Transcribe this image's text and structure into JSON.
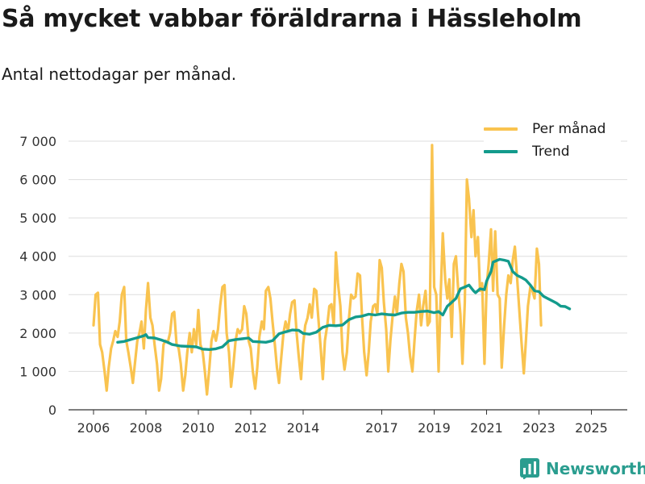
{
  "title": "Så mycket vabbar föräldrarna i Hässleholm",
  "subtitle": "Antal nettodagar per månad.",
  "brand": "Newsworthy",
  "colors": {
    "monthly": "#f9c34f",
    "trend": "#139b8c",
    "grid": "#dddddd",
    "axis": "#333333",
    "brand": "#2a9d8f"
  },
  "chart_data": {
    "type": "line",
    "title": "Så mycket vabbar föräldrarna i Hässleholm",
    "subtitle": "Antal nettodagar per månad.",
    "xlabel": "",
    "ylabel": "",
    "x_unit": "year",
    "xlim": [
      2006,
      2025.6
    ],
    "ylim": [
      0,
      7000
    ],
    "yticks": [
      0,
      1000,
      2000,
      3000,
      4000,
      5000,
      6000,
      7000
    ],
    "ytick_labels": [
      "0",
      "1 000",
      "2 000",
      "3 000",
      "4 000",
      "5 000",
      "6 000",
      "7 000"
    ],
    "xticks": [
      2006,
      2008,
      2010,
      2012,
      2014,
      2017,
      2019,
      2021,
      2023,
      2025
    ],
    "xtick_labels": [
      "2006",
      "2008",
      "2010",
      "2012",
      "2014",
      "2017",
      "2019",
      "2021",
      "2023",
      "2025"
    ],
    "legend_position": "top-right",
    "grid": true,
    "series": [
      {
        "name": "Per månad",
        "points": [
          [
            2006.0,
            2200
          ],
          [
            2006.08,
            3000
          ],
          [
            2006.17,
            3050
          ],
          [
            2006.25,
            1700
          ],
          [
            2006.33,
            1500
          ],
          [
            2006.42,
            1000
          ],
          [
            2006.5,
            500
          ],
          [
            2006.58,
            1100
          ],
          [
            2006.67,
            1600
          ],
          [
            2006.75,
            1800
          ],
          [
            2006.83,
            2050
          ],
          [
            2006.92,
            1900
          ],
          [
            2007.0,
            2300
          ],
          [
            2007.08,
            3000
          ],
          [
            2007.17,
            3200
          ],
          [
            2007.25,
            1800
          ],
          [
            2007.33,
            1500
          ],
          [
            2007.42,
            1100
          ],
          [
            2007.5,
            700
          ],
          [
            2007.58,
            1200
          ],
          [
            2007.67,
            1800
          ],
          [
            2007.75,
            2000
          ],
          [
            2007.83,
            2300
          ],
          [
            2007.92,
            1600
          ],
          [
            2008.0,
            2600
          ],
          [
            2008.08,
            3300
          ],
          [
            2008.17,
            2400
          ],
          [
            2008.25,
            2200
          ],
          [
            2008.33,
            1700
          ],
          [
            2008.42,
            1200
          ],
          [
            2008.5,
            500
          ],
          [
            2008.58,
            800
          ],
          [
            2008.67,
            1700
          ],
          [
            2008.75,
            1800
          ],
          [
            2008.83,
            1750
          ],
          [
            2008.92,
            2000
          ],
          [
            2009.0,
            2500
          ],
          [
            2009.08,
            2550
          ],
          [
            2009.17,
            1700
          ],
          [
            2009.25,
            1600
          ],
          [
            2009.33,
            1200
          ],
          [
            2009.42,
            500
          ],
          [
            2009.5,
            900
          ],
          [
            2009.58,
            1500
          ],
          [
            2009.67,
            2000
          ],
          [
            2009.75,
            1500
          ],
          [
            2009.83,
            2100
          ],
          [
            2009.92,
            1700
          ],
          [
            2010.0,
            2600
          ],
          [
            2010.08,
            1700
          ],
          [
            2010.17,
            1500
          ],
          [
            2010.25,
            1000
          ],
          [
            2010.33,
            400
          ],
          [
            2010.42,
            1100
          ],
          [
            2010.5,
            1800
          ],
          [
            2010.58,
            2050
          ],
          [
            2010.67,
            1800
          ],
          [
            2010.75,
            2100
          ],
          [
            2010.83,
            2700
          ],
          [
            2010.92,
            3200
          ],
          [
            2011.0,
            3250
          ],
          [
            2011.08,
            2000
          ],
          [
            2011.17,
            1500
          ],
          [
            2011.25,
            600
          ],
          [
            2011.33,
            1100
          ],
          [
            2011.42,
            1800
          ],
          [
            2011.5,
            2100
          ],
          [
            2011.58,
            2000
          ],
          [
            2011.67,
            2100
          ],
          [
            2011.75,
            2700
          ],
          [
            2011.83,
            2500
          ],
          [
            2011.92,
            1800
          ],
          [
            2012.0,
            1600
          ],
          [
            2012.08,
            1000
          ],
          [
            2012.17,
            550
          ],
          [
            2012.25,
            1100
          ],
          [
            2012.33,
            1900
          ],
          [
            2012.42,
            2300
          ],
          [
            2012.5,
            2100
          ],
          [
            2012.58,
            3100
          ],
          [
            2012.67,
            3200
          ],
          [
            2012.75,
            2900
          ],
          [
            2012.83,
            2300
          ],
          [
            2012.92,
            1700
          ],
          [
            2013.0,
            1100
          ],
          [
            2013.08,
            700
          ],
          [
            2013.17,
            1400
          ],
          [
            2013.25,
            2000
          ],
          [
            2013.33,
            2300
          ],
          [
            2013.42,
            2050
          ],
          [
            2013.5,
            2500
          ],
          [
            2013.58,
            2800
          ],
          [
            2013.67,
            2850
          ],
          [
            2013.75,
            2000
          ],
          [
            2013.83,
            1400
          ],
          [
            2013.92,
            800
          ],
          [
            2014.0,
            1700
          ],
          [
            2014.08,
            2200
          ],
          [
            2014.17,
            2400
          ],
          [
            2014.25,
            2750
          ],
          [
            2014.33,
            2400
          ],
          [
            2014.42,
            3150
          ],
          [
            2014.5,
            3100
          ],
          [
            2014.58,
            2400
          ],
          [
            2014.67,
            1600
          ],
          [
            2014.75,
            800
          ],
          [
            2014.83,
            1800
          ],
          [
            2014.92,
            2200
          ],
          [
            2015.0,
            2700
          ],
          [
            2015.08,
            2750
          ],
          [
            2015.17,
            2200
          ],
          [
            2015.25,
            4100
          ],
          [
            2015.33,
            3300
          ],
          [
            2015.42,
            2700
          ],
          [
            2015.5,
            1500
          ],
          [
            2015.58,
            1050
          ],
          [
            2015.67,
            1500
          ],
          [
            2015.75,
            2400
          ],
          [
            2015.83,
            3000
          ],
          [
            2015.92,
            2900
          ],
          [
            2016.0,
            2950
          ],
          [
            2016.08,
            3550
          ],
          [
            2016.17,
            3500
          ],
          [
            2016.25,
            2400
          ],
          [
            2016.33,
            1500
          ],
          [
            2016.42,
            900
          ],
          [
            2016.5,
            1500
          ],
          [
            2016.58,
            2300
          ],
          [
            2016.67,
            2700
          ],
          [
            2016.75,
            2750
          ],
          [
            2016.83,
            2500
          ],
          [
            2016.92,
            3900
          ],
          [
            2017.0,
            3700
          ],
          [
            2017.08,
            2800
          ],
          [
            2017.17,
            2100
          ],
          [
            2017.25,
            1000
          ],
          [
            2017.33,
            1800
          ],
          [
            2017.42,
            2500
          ],
          [
            2017.5,
            2950
          ],
          [
            2017.58,
            2500
          ],
          [
            2017.67,
            3300
          ],
          [
            2017.75,
            3800
          ],
          [
            2017.83,
            3600
          ],
          [
            2017.92,
            2400
          ],
          [
            2018.0,
            2000
          ],
          [
            2018.08,
            1400
          ],
          [
            2018.17,
            1000
          ],
          [
            2018.25,
            1800
          ],
          [
            2018.33,
            2550
          ],
          [
            2018.42,
            3000
          ],
          [
            2018.5,
            2200
          ],
          [
            2018.58,
            2700
          ],
          [
            2018.67,
            3100
          ],
          [
            2018.75,
            2200
          ],
          [
            2018.83,
            2300
          ],
          [
            2018.92,
            6900
          ],
          [
            2019.0,
            3200
          ],
          [
            2019.08,
            3000
          ],
          [
            2019.17,
            1000
          ],
          [
            2019.25,
            3000
          ],
          [
            2019.33,
            4600
          ],
          [
            2019.42,
            3400
          ],
          [
            2019.5,
            2900
          ],
          [
            2019.58,
            3400
          ],
          [
            2019.67,
            1900
          ],
          [
            2019.75,
            3800
          ],
          [
            2019.83,
            4000
          ],
          [
            2019.92,
            3100
          ],
          [
            2020.0,
            2500
          ],
          [
            2020.08,
            1200
          ],
          [
            2020.17,
            2800
          ],
          [
            2020.25,
            6000
          ],
          [
            2020.33,
            5500
          ],
          [
            2020.42,
            4500
          ],
          [
            2020.5,
            5200
          ],
          [
            2020.58,
            4000
          ],
          [
            2020.67,
            4500
          ],
          [
            2020.75,
            3100
          ],
          [
            2020.83,
            3300
          ],
          [
            2020.92,
            1200
          ],
          [
            2021.0,
            3200
          ],
          [
            2021.08,
            3800
          ],
          [
            2021.17,
            4700
          ],
          [
            2021.25,
            3100
          ],
          [
            2021.33,
            4650
          ],
          [
            2021.42,
            3000
          ],
          [
            2021.5,
            2900
          ],
          [
            2021.58,
            1100
          ],
          [
            2021.67,
            2200
          ],
          [
            2021.75,
            3000
          ],
          [
            2021.83,
            3500
          ],
          [
            2021.92,
            3300
          ],
          [
            2022.0,
            3900
          ],
          [
            2022.08,
            4250
          ],
          [
            2022.17,
            3400
          ],
          [
            2022.25,
            2600
          ],
          [
            2022.33,
            1800
          ],
          [
            2022.42,
            950
          ],
          [
            2022.5,
            1800
          ],
          [
            2022.58,
            2700
          ],
          [
            2022.67,
            3200
          ],
          [
            2022.75,
            3100
          ],
          [
            2022.83,
            2900
          ],
          [
            2022.92,
            4200
          ],
          [
            2023.0,
            3800
          ],
          [
            2023.08,
            2200
          ]
        ]
      },
      {
        "name": "Trend",
        "points": [
          [
            2006.92,
            1760
          ],
          [
            2007.17,
            1780
          ],
          [
            2007.42,
            1830
          ],
          [
            2007.67,
            1880
          ],
          [
            2007.92,
            1930
          ],
          [
            2008.0,
            1960
          ],
          [
            2008.08,
            1880
          ],
          [
            2008.33,
            1870
          ],
          [
            2008.58,
            1820
          ],
          [
            2008.83,
            1760
          ],
          [
            2009.0,
            1700
          ],
          [
            2009.33,
            1660
          ],
          [
            2009.67,
            1650
          ],
          [
            2009.92,
            1640
          ],
          [
            2010.17,
            1580
          ],
          [
            2010.42,
            1570
          ],
          [
            2010.67,
            1590
          ],
          [
            2010.92,
            1640
          ],
          [
            2011.17,
            1800
          ],
          [
            2011.42,
            1830
          ],
          [
            2011.67,
            1850
          ],
          [
            2011.92,
            1870
          ],
          [
            2012.08,
            1780
          ],
          [
            2012.33,
            1770
          ],
          [
            2012.58,
            1760
          ],
          [
            2012.83,
            1800
          ],
          [
            2013.08,
            1980
          ],
          [
            2013.33,
            2030
          ],
          [
            2013.58,
            2080
          ],
          [
            2013.83,
            2070
          ],
          [
            2014.0,
            1990
          ],
          [
            2014.25,
            1970
          ],
          [
            2014.5,
            2020
          ],
          [
            2014.75,
            2150
          ],
          [
            2015.0,
            2200
          ],
          [
            2015.25,
            2190
          ],
          [
            2015.5,
            2210
          ],
          [
            2015.75,
            2350
          ],
          [
            2016.0,
            2420
          ],
          [
            2016.25,
            2440
          ],
          [
            2016.5,
            2490
          ],
          [
            2016.75,
            2470
          ],
          [
            2017.0,
            2500
          ],
          [
            2017.25,
            2480
          ],
          [
            2017.5,
            2470
          ],
          [
            2017.75,
            2520
          ],
          [
            2018.0,
            2540
          ],
          [
            2018.25,
            2540
          ],
          [
            2018.5,
            2560
          ],
          [
            2018.75,
            2570
          ],
          [
            2019.0,
            2530
          ],
          [
            2019.17,
            2560
          ],
          [
            2019.33,
            2470
          ],
          [
            2019.5,
            2700
          ],
          [
            2019.67,
            2800
          ],
          [
            2019.83,
            2900
          ],
          [
            2020.0,
            3150
          ],
          [
            2020.17,
            3200
          ],
          [
            2020.33,
            3250
          ],
          [
            2020.5,
            3100
          ],
          [
            2020.58,
            3050
          ],
          [
            2020.75,
            3150
          ],
          [
            2020.92,
            3130
          ],
          [
            2021.0,
            3350
          ],
          [
            2021.17,
            3600
          ],
          [
            2021.25,
            3850
          ],
          [
            2021.42,
            3900
          ],
          [
            2021.5,
            3920
          ],
          [
            2021.67,
            3900
          ],
          [
            2021.83,
            3870
          ],
          [
            2022.0,
            3600
          ],
          [
            2022.17,
            3500
          ],
          [
            2022.33,
            3450
          ],
          [
            2022.5,
            3380
          ],
          [
            2022.67,
            3250
          ],
          [
            2022.83,
            3100
          ],
          [
            2023.0,
            3080
          ],
          [
            2023.17,
            2960
          ],
          [
            2023.33,
            2900
          ],
          [
            2023.5,
            2840
          ],
          [
            2023.67,
            2780
          ],
          [
            2023.83,
            2700
          ],
          [
            2024.0,
            2690
          ],
          [
            2024.17,
            2630
          ]
        ]
      }
    ]
  }
}
